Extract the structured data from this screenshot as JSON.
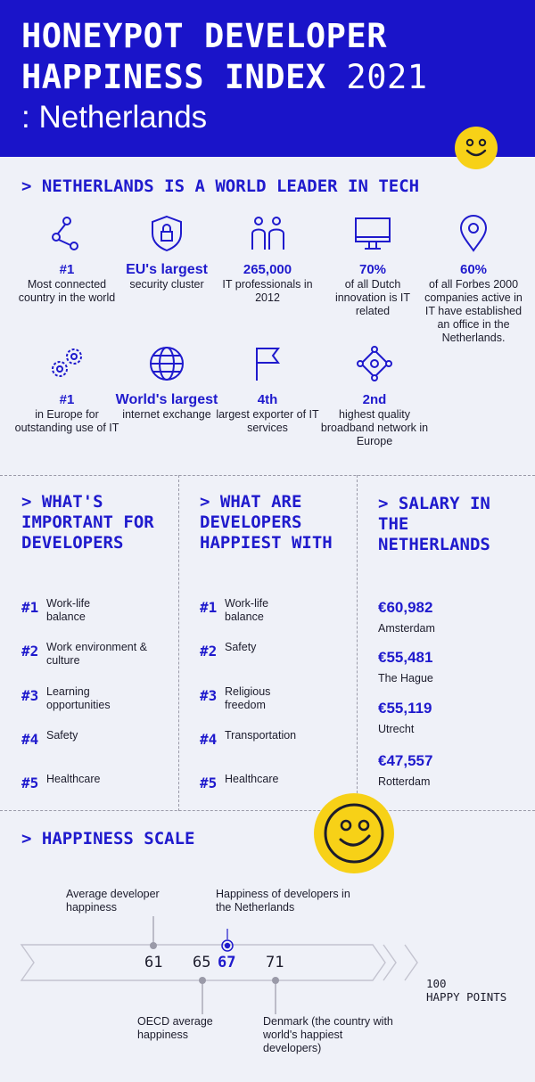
{
  "header": {
    "title_line1": "HONEYPOT DEVELOPER",
    "title_line2": "HAPPINESS INDEX",
    "year": "2021",
    "subtitle": ": Netherlands"
  },
  "world_leader": {
    "title": "> NETHERLANDS IS A WORLD LEADER IN TECH",
    "stats": [
      {
        "icon": "network-share-icon",
        "value": "#1",
        "text": "Most connected country in the world"
      },
      {
        "icon": "shield-lock-icon",
        "value": "EU's largest",
        "text": "security cluster"
      },
      {
        "icon": "people-icon",
        "value": "265,000",
        "text": "IT professionals in 2012"
      },
      {
        "icon": "monitor-icon",
        "value": "70%",
        "text": "of all Dutch innovation is IT related"
      },
      {
        "icon": "location-pin-icon",
        "value": "60%",
        "text": "of all Forbes 2000 companies active in IT have established an office in the Netherlands."
      },
      {
        "icon": "gears-icon",
        "value": "#1",
        "text": "in Europe for outstanding use of IT"
      },
      {
        "icon": "globe-icon",
        "value": "World's largest",
        "text": "internet exchange"
      },
      {
        "icon": "flag-icon",
        "value": "4th",
        "text": "largest exporter of IT services"
      },
      {
        "icon": "broadband-network-icon",
        "value": "2nd",
        "text": "highest quality broadband network in Europe"
      }
    ]
  },
  "important": {
    "title": "> WHAT'S IMPORTANT FOR DEVELOPERS",
    "items": [
      {
        "rank": "#1",
        "label": "Work-life balance"
      },
      {
        "rank": "#2",
        "label": "Work environment & culture"
      },
      {
        "rank": "#3",
        "label": "Learning opportunities"
      },
      {
        "rank": "#4",
        "label": "Safety"
      },
      {
        "rank": "#5",
        "label": "Healthcare"
      }
    ]
  },
  "happiest": {
    "title": "> WHAT ARE DEVELOPERS HAPPIEST WITH",
    "items": [
      {
        "rank": "#1",
        "label": "Work-life balance"
      },
      {
        "rank": "#2",
        "label": "Safety"
      },
      {
        "rank": "#3",
        "label": "Religious freedom"
      },
      {
        "rank": "#4",
        "label": "Transportation"
      },
      {
        "rank": "#5",
        "label": "Healthcare"
      }
    ]
  },
  "salary": {
    "title": "> SALARY IN THE NETHERLANDS",
    "items": [
      {
        "amount": "€60,982",
        "city": "Amsterdam"
      },
      {
        "amount": "€55,481",
        "city": "The Hague"
      },
      {
        "amount": "€55,119",
        "city": "Utrecht"
      },
      {
        "amount": "€47,557",
        "city": "Rotterdam"
      }
    ]
  },
  "scale": {
    "title": "> HAPPINESS SCALE",
    "max_label_line1": "100",
    "max_label_line2": "HAPPY POINTS",
    "points": [
      {
        "value": "61",
        "label": "Average developer happiness"
      },
      {
        "value": "65",
        "label": "OECD average happiness"
      },
      {
        "value": "67",
        "label": "Happiness of developers in the Netherlands"
      },
      {
        "value": "71",
        "label": "Denmark (the country with world's happiest developers)"
      }
    ]
  },
  "colors": {
    "brand_blue": "#1a14c9",
    "accent_yellow": "#f7d117",
    "background": "#eff1f8"
  }
}
